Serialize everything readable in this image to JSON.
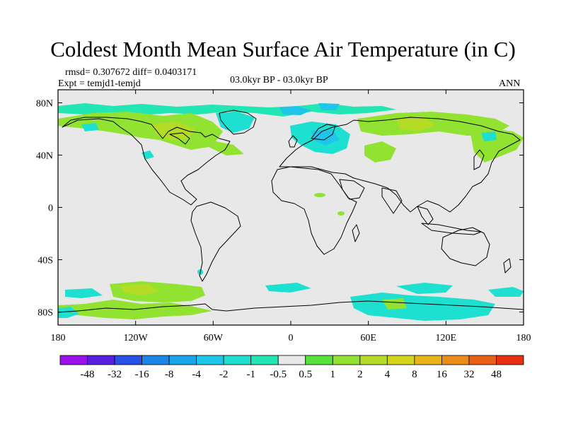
{
  "title": "Coldest Month Mean Surface Air Temperature (in C)",
  "rmsd_text": "rmsd= 0.307672 diff= 0.0403171",
  "expt_text": "Expt = temjd1-temjd",
  "period_text": "03.0kyr BP - 03.0kyr BP",
  "season_text": "ANN",
  "y_ticks": [
    "80N",
    "40N",
    "0",
    "40S",
    "80S"
  ],
  "x_ticks": [
    "180",
    "120W",
    "60W",
    "0",
    "60E",
    "120E",
    "180"
  ],
  "colorbar": {
    "colors": [
      "#9a10e8",
      "#5a1ee0",
      "#2650e6",
      "#1c86e6",
      "#1aa6ea",
      "#1ec6ea",
      "#1ee0d0",
      "#22e6b4",
      "#e8e8e8",
      "#56e23a",
      "#92e232",
      "#b4dc26",
      "#d4d41a",
      "#e8b418",
      "#ea8c18",
      "#e86016",
      "#e63010"
    ],
    "labels": [
      "-48",
      "-32",
      "-16",
      "-8",
      "-4",
      "-2",
      "-1",
      "-0.5",
      "0.5",
      "1",
      "2",
      "4",
      "8",
      "16",
      "32",
      "48"
    ]
  },
  "fill_colors": {
    "land_sea_default": "#e8e8e8",
    "cool_cyan": "#1ee0d0",
    "warm_green": "#92e232",
    "warm_yellow": "#b4dc26"
  }
}
